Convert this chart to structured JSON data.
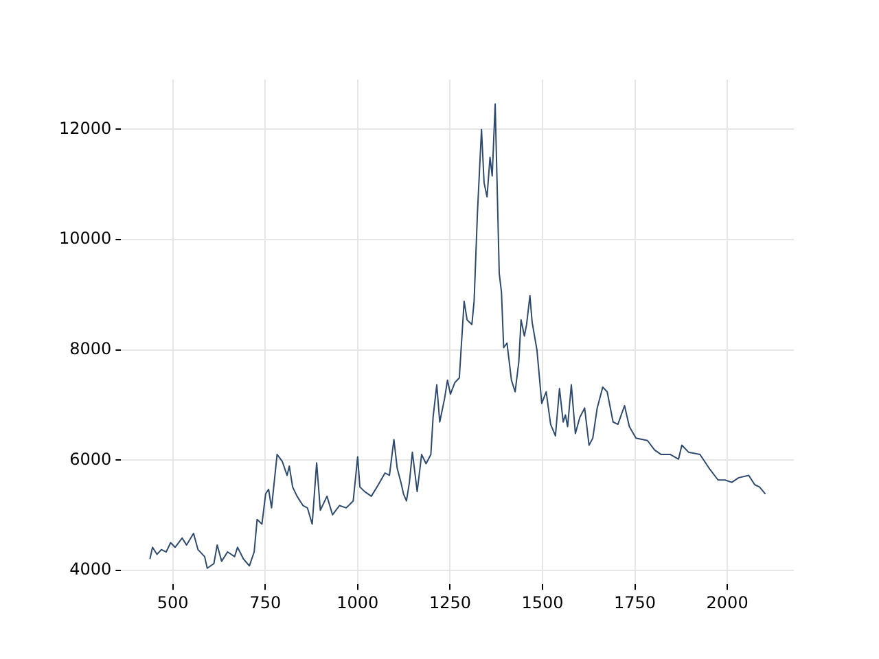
{
  "chart_data": {
    "type": "line",
    "xlim": [
      360,
      2180
    ],
    "ylim": [
      3750,
      12900
    ],
    "xticks": [
      500,
      750,
      1000,
      1250,
      1500,
      1750,
      2000
    ],
    "yticks": [
      4000,
      6000,
      8000,
      10000,
      12000
    ],
    "grid": true,
    "legend": false,
    "marker": "none",
    "line_style": "solid",
    "series": [
      {
        "color": "#2e4a6e",
        "x": [
          438,
          445,
          457,
          469,
          482,
          494,
          506,
          525,
          537,
          556,
          568,
          586,
          593,
          611,
          620,
          632,
          648,
          667,
          675,
          691,
          707,
          720,
          728,
          741,
          751,
          759,
          767,
          782,
          796,
          809,
          815,
          824,
          836,
          852,
          864,
          877,
          889,
          899,
          917,
          932,
          951,
          969,
          988,
          1000,
          1006,
          1019,
          1037,
          1056,
          1074,
          1086,
          1098,
          1107,
          1117,
          1124,
          1132,
          1140,
          1148,
          1161,
          1173,
          1185,
          1198,
          1204,
          1214,
          1222,
          1235,
          1243,
          1251,
          1263,
          1275,
          1288,
          1296,
          1309,
          1315,
          1324,
          1335,
          1342,
          1350,
          1358,
          1364,
          1372,
          1383,
          1389,
          1395,
          1404,
          1416,
          1426,
          1436,
          1442,
          1451,
          1457,
          1466,
          1472,
          1485,
          1498,
          1510,
          1522,
          1535,
          1546,
          1556,
          1562,
          1568,
          1578,
          1589,
          1601,
          1614,
          1626,
          1636,
          1648,
          1663,
          1675,
          1691,
          1704,
          1722,
          1735,
          1753,
          1784,
          1803,
          1821,
          1846,
          1868,
          1877,
          1895,
          1926,
          1951,
          1975,
          1994,
          2012,
          2031,
          2058,
          2074,
          2087,
          2103
        ],
        "values": [
          4210,
          4421,
          4294,
          4379,
          4337,
          4505,
          4421,
          4589,
          4463,
          4673,
          4379,
          4252,
          4042,
          4126,
          4463,
          4168,
          4337,
          4252,
          4421,
          4210,
          4084,
          4337,
          4926,
          4842,
          5389,
          5473,
          5136,
          6104,
          5978,
          5725,
          5894,
          5515,
          5347,
          5178,
          5136,
          4842,
          5953,
          5094,
          5347,
          5010,
          5178,
          5136,
          5262,
          6062,
          5515,
          5431,
          5347,
          5557,
          5768,
          5726,
          6373,
          5852,
          5599,
          5388,
          5262,
          5599,
          6146,
          5431,
          6104,
          5936,
          6104,
          6777,
          7367,
          6693,
          7114,
          7451,
          7198,
          7409,
          7493,
          8882,
          8545,
          8461,
          8882,
          10481,
          11996,
          11028,
          10775,
          11491,
          11154,
          12459,
          9387,
          9050,
          8040,
          8124,
          7451,
          7240,
          7788,
          8545,
          8250,
          8461,
          8983,
          8503,
          7998,
          7030,
          7240,
          6651,
          6441,
          7299,
          6693,
          6820,
          6609,
          7367,
          6483,
          6777,
          6946,
          6272,
          6399,
          6946,
          7324,
          7240,
          6693,
          6651,
          6988,
          6609,
          6399,
          6357,
          6188,
          6104,
          6104,
          6020,
          6272,
          6146,
          6104,
          5852,
          5641,
          5641,
          5599,
          5683,
          5725,
          5557,
          5515,
          5388
        ]
      }
    ]
  }
}
